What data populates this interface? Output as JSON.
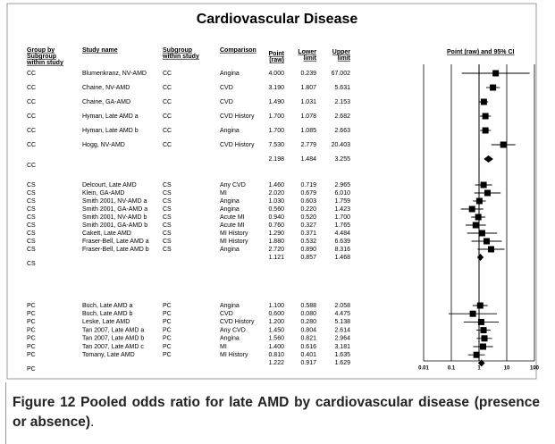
{
  "title": "Cardiovascular Disease",
  "headers": {
    "group": [
      "Group by",
      "Subgroup",
      "within study"
    ],
    "study": [
      "Study name"
    ],
    "subgroup": [
      "Subgroup",
      "within study"
    ],
    "comparison": [
      "Comparison"
    ],
    "point": [
      "Point",
      "(raw)"
    ],
    "lower": [
      "Lower",
      "limit"
    ],
    "upper": [
      "Upper",
      "limit"
    ],
    "plot": [
      "Point (raw) and 95% CI"
    ]
  },
  "plot": {
    "log": true,
    "xlim": [
      0.01,
      100
    ],
    "xticks": [
      0.01,
      0.1,
      1,
      10,
      100
    ]
  },
  "groups": [
    {
      "rows": [
        {
          "group": "CC",
          "study": "Blumenkranz, NV-AMD",
          "subgroup": "CC",
          "comparison": "Angina",
          "point": "4.000",
          "lower": "0.239",
          "upper": "67.002"
        },
        {
          "group": "CC",
          "study": "Chaine, NV-AMD",
          "subgroup": "CC",
          "comparison": "CVD",
          "point": "3.190",
          "lower": "1.807",
          "upper": "5.631"
        },
        {
          "group": "CC",
          "study": "Chaine, GA-AMD",
          "subgroup": "CC",
          "comparison": "CVD",
          "point": "1.490",
          "lower": "1.031",
          "upper": "2.153"
        },
        {
          "group": "CC",
          "study": "Hyman, Late AMD a",
          "subgroup": "CC",
          "comparison": "CVD History",
          "point": "1.700",
          "lower": "1.078",
          "upper": "2.682"
        },
        {
          "group": "CC",
          "study": "Hyman, Late AMD b",
          "subgroup": "CC",
          "comparison": "Angina",
          "point": "1.700",
          "lower": "1.085",
          "upper": "2.663"
        },
        {
          "group": "CC",
          "study": "Hogg, NV-AMD",
          "subgroup": "CC",
          "comparison": "CVD History",
          "point": "7.530",
          "lower": "2.779",
          "upper": "20.403"
        }
      ],
      "summary": {
        "group": "CC",
        "point": "2.198",
        "lower": "1.484",
        "upper": "3.255"
      }
    },
    {
      "rows": [
        {
          "group": "CS",
          "study": "Delcourt, Late AMD",
          "subgroup": "CS",
          "comparison": "Any CVD",
          "point": "1.460",
          "lower": "0.719",
          "upper": "2.965"
        },
        {
          "group": "CS",
          "study": "Klein, GA-AMD",
          "subgroup": "CS",
          "comparison": "MI",
          "point": "2.020",
          "lower": "0.679",
          "upper": "6.010"
        },
        {
          "group": "CS",
          "study": "Smith 2001, NV-AMD a",
          "subgroup": "CS",
          "comparison": "Angina",
          "point": "1.030",
          "lower": "0.603",
          "upper": "1.759"
        },
        {
          "group": "CS",
          "study": "Smith 2001, GA-AMD a",
          "subgroup": "CS",
          "comparison": "Angina",
          "point": "0.560",
          "lower": "0.220",
          "upper": "1.423"
        },
        {
          "group": "CS",
          "study": "Smith 2001, NV-AMD b",
          "subgroup": "CS",
          "comparison": "Acute MI",
          "point": "0.940",
          "lower": "0.520",
          "upper": "1.700"
        },
        {
          "group": "CS",
          "study": "Smith 2001, GA-AMD b",
          "subgroup": "CS",
          "comparison": "Acute MI",
          "point": "0.760",
          "lower": "0.327",
          "upper": "1.765"
        },
        {
          "group": "CS",
          "study": "Cakett, Late AMD",
          "subgroup": "CS",
          "comparison": "MI History",
          "point": "1.290",
          "lower": "0.371",
          "upper": "4.484"
        },
        {
          "group": "CS",
          "study": "Fraser-Bell, Late AMD a",
          "subgroup": "CS",
          "comparison": "MI History",
          "point": "1.880",
          "lower": "0.532",
          "upper": "6.639"
        },
        {
          "group": "CS",
          "study": "Fraser-Bell, Late AMD b",
          "subgroup": "CS",
          "comparison": "Angina",
          "point": "2.720",
          "lower": "0.890",
          "upper": "8.316"
        }
      ],
      "summary": {
        "group": "CS",
        "point": "1.121",
        "lower": "0.857",
        "upper": "1.468"
      }
    },
    {
      "rows": [
        {
          "group": "PC",
          "study": "Buch, Late AMD a",
          "subgroup": "PC",
          "comparison": "Angina",
          "point": "1.100",
          "lower": "0.588",
          "upper": "2.058"
        },
        {
          "group": "PC",
          "study": "Buch, Late AMD b",
          "subgroup": "PC",
          "comparison": "CVD",
          "point": "0.600",
          "lower": "0.080",
          "upper": "4.475"
        },
        {
          "group": "PC",
          "study": "Leske, Late AMD",
          "subgroup": "PC",
          "comparison": "CVD History",
          "point": "1.200",
          "lower": "0.280",
          "upper": "5.138"
        },
        {
          "group": "PC",
          "study": "Tan 2007, Late AMD a",
          "subgroup": "PC",
          "comparison": "Any CVD",
          "point": "1.450",
          "lower": "0.804",
          "upper": "2.614"
        },
        {
          "group": "PC",
          "study": "Tan 2007, Late AMD b",
          "subgroup": "PC",
          "comparison": "Angina",
          "point": "1.560",
          "lower": "0.821",
          "upper": "2.964"
        },
        {
          "group": "PC",
          "study": "Tan 2007, Late AMD c",
          "subgroup": "PC",
          "comparison": "MI",
          "point": "1.400",
          "lower": "0.616",
          "upper": "3.181"
        },
        {
          "group": "PC",
          "study": "Tomany, Late AMD",
          "subgroup": "PC",
          "comparison": "MI History",
          "point": "0.810",
          "lower": "0.401",
          "upper": "1.635"
        }
      ],
      "summary": {
        "group": "PC",
        "point": "1.222",
        "lower": "0.917",
        "upper": "1.629"
      }
    }
  ],
  "caption": {
    "label": "Figure 12",
    "text": "Pooled odds ratio for late AMD by cardiovascular disease (presence or absence)",
    "end": "."
  }
}
